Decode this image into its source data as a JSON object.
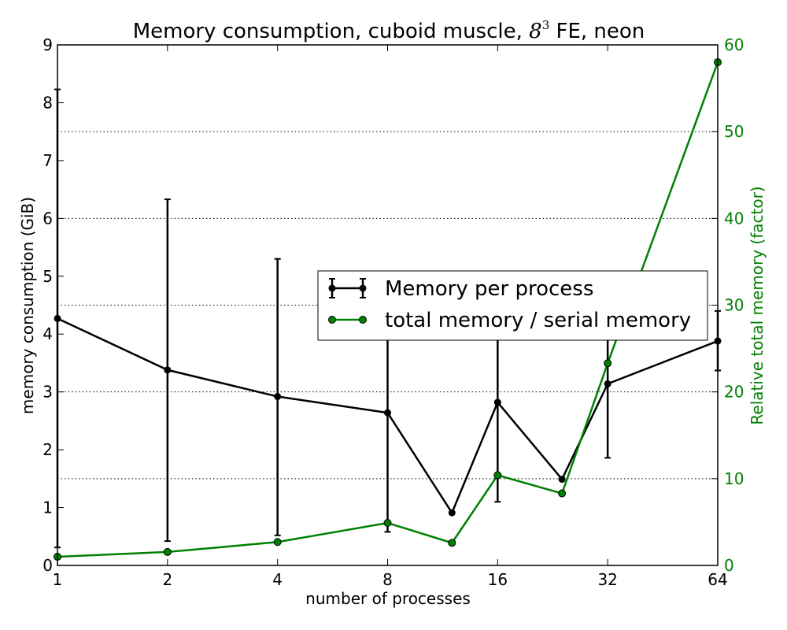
{
  "chart_data": {
    "type": "line",
    "title_main": "Memory consumption, cuboid muscle, ",
    "title_math_base": "8",
    "title_math_exp": "3",
    "title_end": " FE, neon",
    "xlabel": "number of processes",
    "ylabel": "memory consumption (GiB)",
    "y2label": "Relative total memory (factor)",
    "x_scale": "log2",
    "xlim": [
      1,
      64
    ],
    "ylim": [
      0,
      9
    ],
    "y2lim": [
      0,
      60
    ],
    "x_ticks": [
      1,
      2,
      4,
      8,
      16,
      32,
      64
    ],
    "x_tick_labels": [
      "1",
      "2",
      "4",
      "8",
      "16",
      "32",
      "64"
    ],
    "y_ticks": [
      0,
      1,
      2,
      3,
      4,
      5,
      6,
      7,
      8,
      9
    ],
    "y_tick_labels": [
      "0",
      "1",
      "2",
      "3",
      "4",
      "5",
      "6",
      "7",
      "8",
      "9"
    ],
    "y2_ticks": [
      0,
      10,
      20,
      30,
      40,
      50,
      60
    ],
    "y2_tick_labels": [
      "0",
      "10",
      "20",
      "30",
      "40",
      "50",
      "60"
    ],
    "grid": "horizontal dotted at 1.5, 3, 4.5, 6, 7.5",
    "grid_values": [
      1.5,
      3,
      4.5,
      6,
      7.5
    ],
    "legend_placement": "center-right",
    "series": [
      {
        "name": "Memory per process",
        "axis": "left",
        "color": "#000000",
        "x": [
          1,
          2,
          4,
          8,
          12,
          16,
          24,
          32,
          64
        ],
        "y": [
          4.27,
          3.38,
          2.92,
          2.64,
          0.91,
          2.82,
          1.49,
          3.14,
          3.88
        ],
        "err_low": [
          0.31,
          0.42,
          0.52,
          0.58,
          0.91,
          1.1,
          1.49,
          1.86,
          3.37
        ],
        "err_high": [
          8.23,
          6.33,
          5.3,
          5.0,
          0.91,
          5.0,
          1.49,
          4.5,
          4.4
        ]
      },
      {
        "name": "total memory / serial memory",
        "axis": "right",
        "color": "#008000",
        "x": [
          1,
          2,
          4,
          8,
          12,
          16,
          24,
          32,
          64
        ],
        "y": [
          1.0,
          1.55,
          2.7,
          4.9,
          2.6,
          10.4,
          8.3,
          23.3,
          58.0
        ]
      }
    ]
  }
}
